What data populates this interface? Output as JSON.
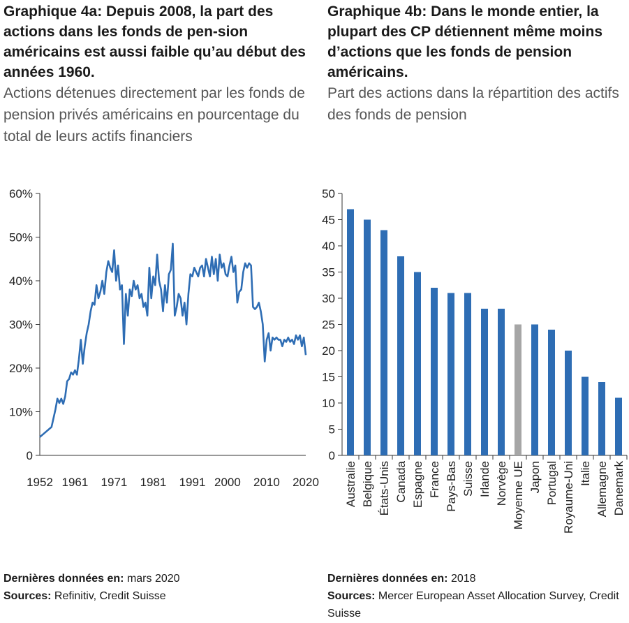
{
  "panel_a": {
    "title": "Graphique 4a: Depuis 2008, la part des actions dans les fonds de pen-sion américains est aussi faible qu’au début des années 1960.",
    "subtitle": "Actions détenues directement par les fonds de pension privés américains en pourcentage du total de leurs actifs financiers",
    "footer_label_1": "Dernières données en:",
    "footer_value_1": " mars 2020",
    "footer_label_2": "Sources:",
    "footer_value_2": " Refinitiv, Credit Suisse"
  },
  "panel_b": {
    "title": "Graphique 4b: Dans le monde entier, la plupart des CP détiennent même moins d’actions que les fonds de pension américains.",
    "subtitle": "Part des actions dans la répartition des actifs des fonds de pension",
    "footer_label_1": "Dernières données en:",
    "footer_value_1": " 2018",
    "footer_label_2": "Sources:",
    "footer_value_2": " Mercer European Asset Allocation Survey, Credit Suisse"
  },
  "chart_data": [
    {
      "type": "line",
      "line_color": "#2e6db4",
      "ylim": [
        0,
        60
      ],
      "y_ticks": [
        0,
        10,
        20,
        30,
        40,
        50,
        60
      ],
      "y_tick_labels": [
        "0",
        "10%",
        "20%",
        "30%",
        "40%",
        "50%",
        "60%"
      ],
      "xlim": [
        1952,
        2020
      ],
      "x_ticks": [
        1952,
        1961,
        1971,
        1981,
        1991,
        2000,
        2010,
        2020
      ],
      "x_tick_labels": [
        "1952",
        "1961",
        "1971",
        "1981",
        "1991",
        "2000",
        "2010",
        "2020"
      ],
      "grid": false,
      "series": [
        {
          "x": [
            1952,
            1955,
            1956,
            1956.5,
            1957,
            1957.5,
            1958,
            1958.5,
            1959,
            1959.5,
            1960,
            1960.5,
            1961,
            1961.5,
            1962,
            1962.5,
            1963,
            1963.5,
            1964,
            1964.5,
            1965,
            1965.5,
            1966,
            1966.5,
            1967,
            1967.5,
            1968,
            1968.5,
            1969,
            1969.5,
            1970,
            1970.5,
            1971,
            1971.5,
            1972,
            1972.5,
            1973,
            1973.5,
            1974,
            1974.5,
            1975,
            1975.5,
            1976,
            1976.5,
            1977,
            1977.5,
            1978,
            1978.5,
            1979,
            1979.5,
            1980,
            1980.5,
            1981,
            1981.5,
            1982,
            1982.5,
            1983,
            1983.5,
            1984,
            1984.5,
            1985,
            1985.5,
            1986,
            1986.5,
            1987,
            1987.5,
            1988,
            1988.5,
            1989,
            1989.5,
            1990,
            1990.5,
            1991,
            1991.5,
            1992,
            1992.5,
            1993,
            1993.5,
            1994,
            1994.5,
            1995,
            1995.5,
            1996,
            1996.5,
            1997,
            1997.5,
            1998,
            1998.5,
            1999,
            1999.5,
            2000,
            2000.5,
            2001,
            2001.5,
            2002,
            2002.5,
            2003,
            2003.5,
            2004,
            2004.5,
            2005,
            2005.5,
            2006,
            2006.5,
            2007,
            2007.5,
            2008,
            2008.5,
            2009,
            2009.5,
            2010,
            2010.5,
            2011,
            2011.5,
            2012,
            2012.5,
            2013,
            2013.5,
            2014,
            2014.5,
            2015,
            2015.5,
            2016,
            2016.5,
            2017,
            2017.5,
            2018,
            2018.5,
            2019,
            2019.5,
            2020
          ],
          "y": [
            4.2,
            6.5,
            10.5,
            13,
            12,
            13,
            11.8,
            13.5,
            17,
            17.5,
            19,
            18.5,
            19.5,
            18.5,
            22,
            26.5,
            21,
            25,
            28,
            30,
            33,
            35,
            34.5,
            39,
            36,
            37.5,
            40,
            37,
            42,
            44.5,
            43,
            42,
            47,
            40,
            43.5,
            38,
            39,
            25.5,
            37,
            32,
            38,
            36.5,
            40,
            38,
            39,
            36,
            37,
            34,
            35,
            32,
            43,
            36,
            41,
            39,
            46,
            40,
            38,
            33,
            39,
            35,
            41.5,
            42.5,
            48.5,
            32,
            34,
            37,
            36,
            32,
            35,
            30,
            37,
            41.5,
            41,
            43,
            42,
            41,
            43,
            43.5,
            41,
            45,
            43,
            41,
            45.5,
            41.5,
            45,
            40,
            46,
            43,
            44,
            41.5,
            41,
            43.5,
            45.5,
            42,
            43.5,
            35,
            37.5,
            38,
            42,
            44,
            43,
            44,
            43.5,
            34,
            33.5,
            34,
            35,
            33,
            30,
            21.5,
            26.5,
            28,
            24,
            27,
            26.5,
            27,
            26.5,
            26.5,
            25,
            26.5,
            26,
            27,
            26,
            26.5,
            25.5,
            27.5,
            26.5,
            27.5,
            25,
            27,
            23
          ]
        }
      ]
    },
    {
      "type": "bar",
      "ylim": [
        0,
        50
      ],
      "y_ticks": [
        0,
        5,
        10,
        15,
        20,
        25,
        30,
        35,
        40,
        45,
        50
      ],
      "grid": false,
      "bar_color": "#2e6db4",
      "highlight_color": "#a6a6a6",
      "categories": [
        "Australie",
        "Belgique",
        "États-Unis",
        "Canada",
        "Espagne",
        "France",
        "Pays-Bas",
        "Suisse",
        "Irlande",
        "Norvège",
        "Moyenne UE",
        "Japon",
        "Portugal",
        "Royaume-Uni",
        "Italie",
        "Allemagne",
        "Danemark"
      ],
      "values": [
        47,
        45,
        43,
        38,
        35,
        32,
        31,
        31,
        28,
        28,
        25,
        25,
        24,
        20,
        15,
        14,
        11
      ],
      "highlight": [
        "Moyenne UE"
      ]
    }
  ]
}
